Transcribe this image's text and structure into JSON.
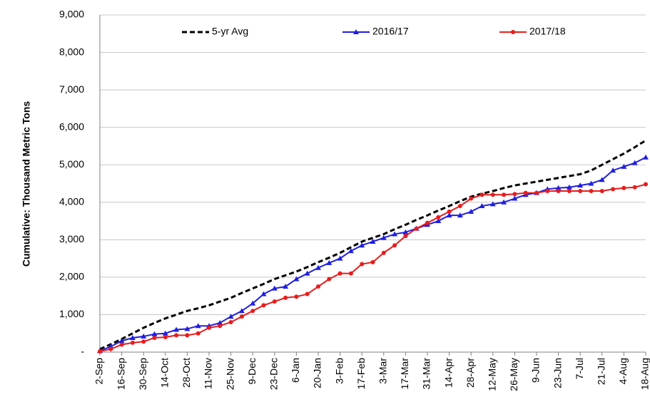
{
  "chart_data": {
    "type": "line",
    "y_label": "Cumulative:  Thousand Metric Tons",
    "categories": [
      "2-Sep",
      null,
      "16-Sep",
      null,
      "30-Sep",
      null,
      "14-Oct",
      null,
      "28-Oct",
      null,
      "11-Nov",
      null,
      "25-Nov",
      null,
      "9-Dec",
      null,
      "23-Dec",
      null,
      "6-Jan",
      null,
      "20-Jan",
      null,
      "3-Feb",
      null,
      "17-Feb",
      null,
      "3-Mar",
      null,
      "17-Mar",
      null,
      "31-Mar",
      null,
      "14-Apr",
      null,
      "28-Apr",
      null,
      "12-May",
      null,
      "26-May",
      null,
      "9-Jun",
      null,
      "23-Jun",
      null,
      "7-Jul",
      null,
      "21-Jul",
      null,
      "4-Aug",
      null,
      "18-Aug"
    ],
    "series": [
      {
        "name": "5-yr Avg",
        "color": "#000000",
        "dash": true,
        "marker": "none",
        "values": [
          80,
          210,
          350,
          500,
          650,
          780,
          900,
          1000,
          1100,
          1170,
          1250,
          1350,
          1450,
          1580,
          1700,
          1820,
          1950,
          2050,
          2150,
          2270,
          2400,
          2520,
          2650,
          2800,
          2950,
          3050,
          3150,
          3280,
          3400,
          3530,
          3650,
          3780,
          3900,
          4030,
          4150,
          4230,
          4300,
          4380,
          4450,
          4500,
          4550,
          4600,
          4650,
          4700,
          4750,
          4850,
          5000,
          5150,
          5300,
          5470,
          5650
        ]
      },
      {
        "name": "2016/17",
        "color": "#1f1fe0",
        "dash": false,
        "marker": "triangle",
        "values": [
          30,
          150,
          300,
          380,
          420,
          480,
          500,
          600,
          620,
          700,
          700,
          780,
          950,
          1100,
          1300,
          1550,
          1700,
          1750,
          1950,
          2100,
          2250,
          2380,
          2500,
          2700,
          2850,
          2950,
          3050,
          3150,
          3200,
          3300,
          3400,
          3500,
          3650,
          3650,
          3750,
          3900,
          3950,
          4000,
          4100,
          4200,
          4250,
          4350,
          4380,
          4400,
          4450,
          4500,
          4600,
          4850,
          4950,
          5050,
          5200
        ]
      },
      {
        "name": "2017/18",
        "color": "#e81c1c",
        "dash": false,
        "marker": "circle",
        "values": [
          20,
          80,
          200,
          250,
          280,
          380,
          400,
          450,
          450,
          500,
          650,
          700,
          800,
          950,
          1100,
          1250,
          1350,
          1450,
          1480,
          1550,
          1750,
          1950,
          2100,
          2100,
          2350,
          2400,
          2650,
          2850,
          3100,
          3300,
          3450,
          3600,
          3750,
          3900,
          4100,
          4200,
          4200,
          4200,
          4220,
          4250,
          4250,
          4300,
          4300,
          4300,
          4300,
          4300,
          4300,
          4350,
          4380,
          4400,
          4480
        ]
      }
    ],
    "ylim": [
      0,
      9000
    ],
    "yticks": [
      {
        "value": 0,
        "label": "-"
      },
      {
        "value": 1000,
        "label": "1,000"
      },
      {
        "value": 2000,
        "label": "2,000"
      },
      {
        "value": 3000,
        "label": "3,000"
      },
      {
        "value": 4000,
        "label": "4,000"
      },
      {
        "value": 5000,
        "label": "5,000"
      },
      {
        "value": 6000,
        "label": "6,000"
      },
      {
        "value": 7000,
        "label": "7,000"
      },
      {
        "value": 8000,
        "label": "8,000"
      },
      {
        "value": 9000,
        "label": "9,000"
      }
    ],
    "grid": true,
    "legend": "top"
  }
}
